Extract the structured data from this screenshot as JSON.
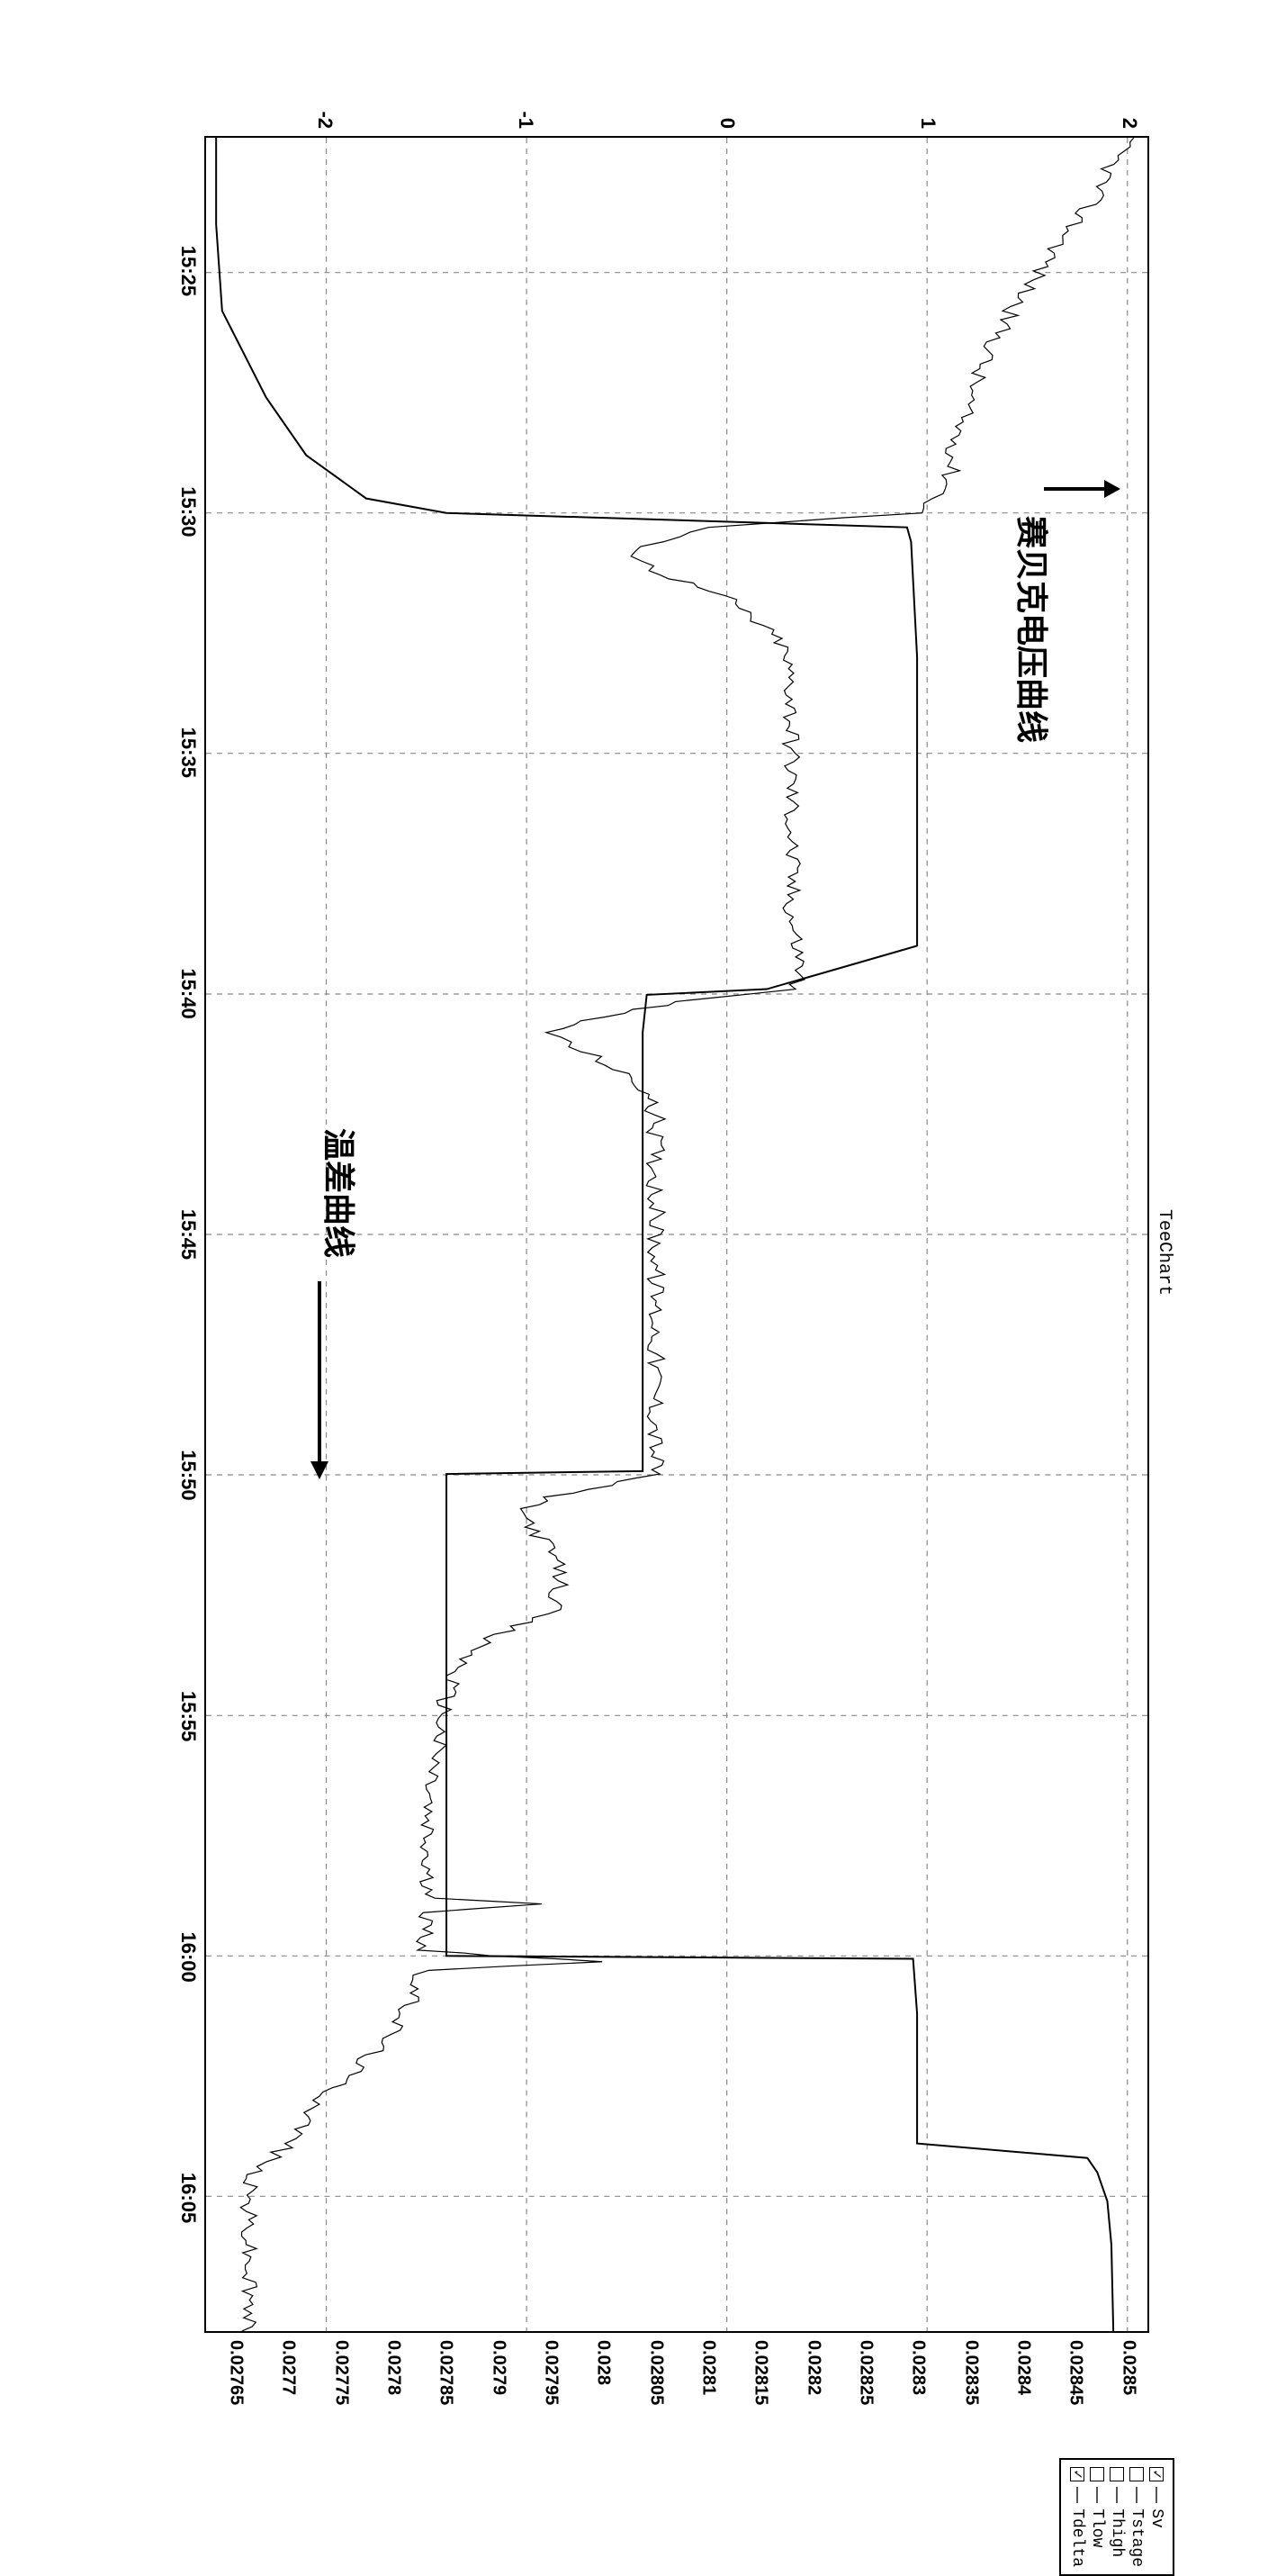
{
  "title": "TeeChart",
  "x_axis": {
    "ticks": [
      "15:25",
      "15:30",
      "15:35",
      "15:40",
      "15:45",
      "15:50",
      "15:55",
      "16:00",
      "16:05"
    ],
    "min_val": 15.37,
    "max_val": 16.13,
    "tick_vals": [
      15.4167,
      15.5,
      15.5833,
      15.6667,
      15.75,
      15.8333,
      15.9167,
      16.0,
      16.0833
    ]
  },
  "y_left": {
    "ticks": [
      "2",
      "1",
      "0",
      "-1",
      "-2"
    ],
    "tick_vals": [
      2,
      1,
      0,
      -1,
      -2
    ],
    "min": -2.6,
    "max": 2.1
  },
  "y_right": {
    "ticks": [
      "0.0285",
      "0.02845",
      "0.0284",
      "0.02835",
      "0.0283",
      "0.02825",
      "0.0282",
      "0.02815",
      "0.0281",
      "0.02805",
      "0.028",
      "0.02795",
      "0.0279",
      "0.02785",
      "0.0278",
      "0.02775",
      "0.0277",
      "0.02765"
    ],
    "tick_vals": [
      0.0285,
      0.02845,
      0.0284,
      0.02835,
      0.0283,
      0.02825,
      0.0282,
      0.02815,
      0.0281,
      0.02805,
      0.028,
      0.02795,
      0.0279,
      0.02785,
      0.0278,
      0.02775,
      0.0277,
      0.02765
    ],
    "min": 0.02762,
    "max": 0.02852
  },
  "legend": {
    "items": [
      {
        "name": "Sv",
        "checked": true
      },
      {
        "name": "Tstage",
        "checked": false
      },
      {
        "name": "Thigh",
        "checked": false
      },
      {
        "name": "Tlow",
        "checked": false
      },
      {
        "name": "Tdelta",
        "checked": true
      }
    ]
  },
  "annotations": {
    "seebeck": "赛贝克电压曲线",
    "tempdiff": "温差曲线"
  },
  "series_tdelta": {
    "color": "#000000",
    "width": 2,
    "points": [
      [
        15.37,
        -2.55
      ],
      [
        15.4,
        -2.55
      ],
      [
        15.43,
        -2.52
      ],
      [
        15.46,
        -2.3
      ],
      [
        15.48,
        -2.1
      ],
      [
        15.495,
        -1.8
      ],
      [
        15.5,
        -1.4
      ],
      [
        15.505,
        0.9
      ],
      [
        15.51,
        0.92
      ],
      [
        15.55,
        0.95
      ],
      [
        15.6,
        0.95
      ],
      [
        15.65,
        0.95
      ],
      [
        15.665,
        0.2
      ],
      [
        15.667,
        -0.4
      ],
      [
        15.68,
        -0.42
      ],
      [
        15.72,
        -0.42
      ],
      [
        15.75,
        -0.42
      ],
      [
        15.8,
        -0.42
      ],
      [
        15.832,
        -0.42
      ],
      [
        15.833,
        -1.4
      ],
      [
        15.85,
        -1.4
      ],
      [
        15.88,
        -1.4
      ],
      [
        15.92,
        -1.4
      ],
      [
        15.96,
        -1.4
      ],
      [
        15.998,
        -1.4
      ],
      [
        16.0,
        -1.4
      ],
      [
        16.001,
        0.93
      ],
      [
        16.02,
        0.95
      ],
      [
        16.05,
        0.95
      ],
      [
        16.065,
        0.95
      ],
      [
        16.07,
        1.8
      ],
      [
        16.075,
        1.85
      ],
      [
        16.085,
        1.9
      ],
      [
        16.1,
        1.92
      ],
      [
        16.13,
        1.93
      ]
    ]
  },
  "series_sv": {
    "color": "#000000",
    "width": 1.2,
    "noise": 0.04,
    "points": [
      [
        15.37,
        0.0285
      ],
      [
        15.39,
        0.02847
      ],
      [
        15.41,
        0.02843
      ],
      [
        15.43,
        0.02839
      ],
      [
        15.45,
        0.02836
      ],
      [
        15.47,
        0.02834
      ],
      [
        15.49,
        0.02833
      ],
      [
        15.495,
        0.02832
      ],
      [
        15.5,
        0.0283
      ],
      [
        15.505,
        0.0281
      ],
      [
        15.51,
        0.02805
      ],
      [
        15.515,
        0.02803
      ],
      [
        15.52,
        0.02805
      ],
      [
        15.53,
        0.02812
      ],
      [
        15.545,
        0.02817
      ],
      [
        15.56,
        0.02818
      ],
      [
        15.58,
        0.02818
      ],
      [
        15.6,
        0.02818
      ],
      [
        15.62,
        0.02818
      ],
      [
        15.64,
        0.02818
      ],
      [
        15.66,
        0.02819
      ],
      [
        15.665,
        0.02818
      ],
      [
        15.668,
        0.0281
      ],
      [
        15.672,
        0.02803
      ],
      [
        15.676,
        0.02798
      ],
      [
        15.68,
        0.02795
      ],
      [
        15.685,
        0.02797
      ],
      [
        15.69,
        0.028
      ],
      [
        15.7,
        0.02804
      ],
      [
        15.71,
        0.02805
      ],
      [
        15.73,
        0.02805
      ],
      [
        15.75,
        0.02805
      ],
      [
        15.77,
        0.02805
      ],
      [
        15.79,
        0.02805
      ],
      [
        15.81,
        0.02805
      ],
      [
        15.83,
        0.02805
      ],
      [
        15.833,
        0.02805
      ],
      [
        15.837,
        0.028
      ],
      [
        15.841,
        0.02795
      ],
      [
        15.845,
        0.02792
      ],
      [
        15.85,
        0.02793
      ],
      [
        15.86,
        0.02795
      ],
      [
        15.87,
        0.02796
      ],
      [
        15.88,
        0.02795
      ],
      [
        15.89,
        0.02789
      ],
      [
        15.9,
        0.02786
      ],
      [
        15.91,
        0.02785
      ],
      [
        15.93,
        0.02784
      ],
      [
        15.95,
        0.02783
      ],
      [
        15.97,
        0.02783
      ],
      [
        15.98,
        0.02783
      ],
      [
        15.982,
        0.02795
      ],
      [
        15.985,
        0.02783
      ],
      [
        15.995,
        0.02783
      ],
      [
        15.998,
        0.02783
      ],
      [
        16.0,
        0.0279
      ],
      [
        16.002,
        0.028
      ],
      [
        16.005,
        0.02783
      ],
      [
        16.01,
        0.02782
      ],
      [
        16.02,
        0.02781
      ],
      [
        16.03,
        0.02779
      ],
      [
        16.04,
        0.02776
      ],
      [
        16.05,
        0.02773
      ],
      [
        16.06,
        0.02771
      ],
      [
        16.065,
        0.0277
      ],
      [
        16.068,
        0.02769
      ],
      [
        16.073,
        0.02767
      ],
      [
        16.08,
        0.02766
      ],
      [
        16.09,
        0.02766
      ],
      [
        16.1,
        0.02766
      ],
      [
        16.11,
        0.02766
      ],
      [
        16.13,
        0.02766
      ]
    ]
  },
  "styling": {
    "background": "#ffffff",
    "grid_color": "#888888",
    "grid_dash": "6,6",
    "axis_color": "#000000",
    "font_size_ticks": 22,
    "font_size_title": 20,
    "font_size_annotation": 36
  }
}
